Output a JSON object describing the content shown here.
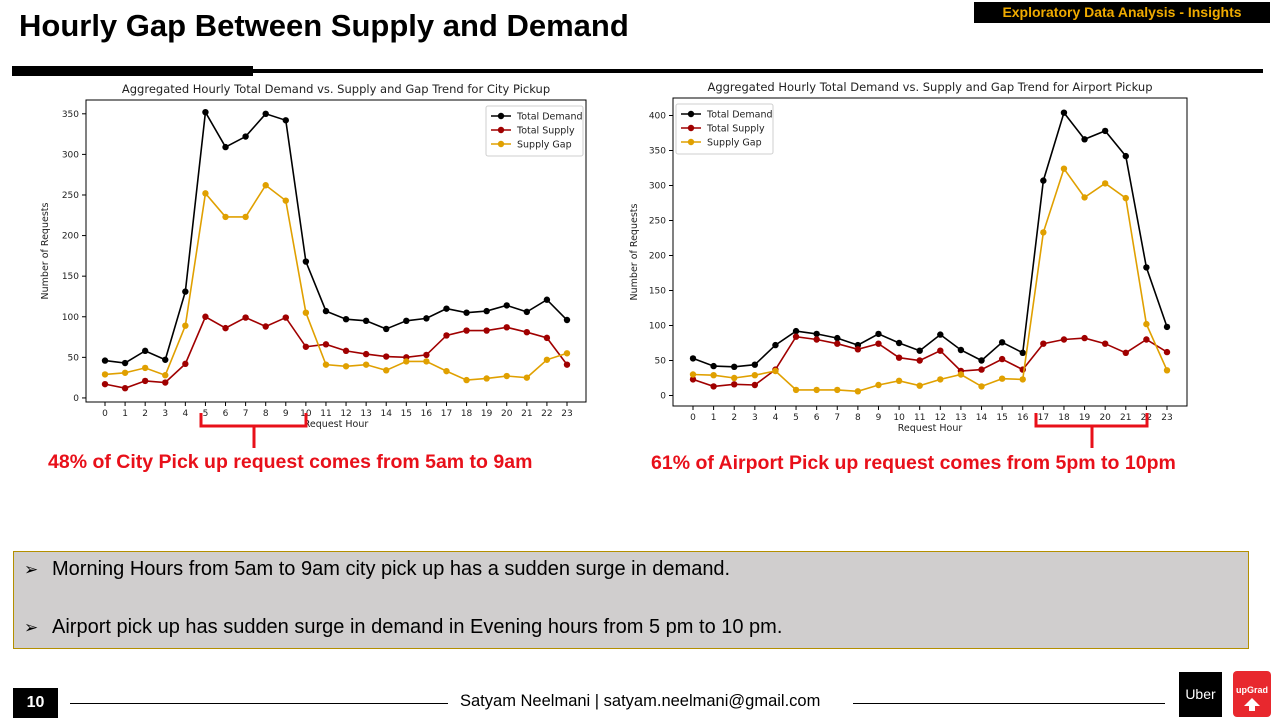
{
  "header": {
    "title": "Hourly Gap Between Supply and Demand",
    "section_badge": "Exploratory Data Analysis - Insights"
  },
  "colors": {
    "accent": "#f0ab00",
    "highlight_red": "#e8101a",
    "demand": "#000000",
    "supply": "#a00000",
    "gap": "#e0a000",
    "summary_bg": "#d0cece"
  },
  "chart_data": [
    {
      "type": "line",
      "title": "Aggregated Hourly Total Demand vs. Supply and Gap Trend for City Pickup",
      "xlabel": "Request Hour",
      "ylabel": "Number of Requests",
      "x": [
        0,
        1,
        2,
        3,
        4,
        5,
        6,
        7,
        8,
        9,
        10,
        11,
        12,
        13,
        14,
        15,
        16,
        17,
        18,
        19,
        20,
        21,
        22,
        23
      ],
      "yticks": [
        0,
        50,
        100,
        150,
        200,
        250,
        300,
        350
      ],
      "ylim": [
        -5,
        367
      ],
      "legend_position": "top-right",
      "series": [
        {
          "name": "Total Demand",
          "color": "#000000",
          "values": [
            46,
            43,
            58,
            47,
            131,
            352,
            309,
            322,
            350,
            342,
            168,
            107,
            97,
            95,
            85,
            95,
            98,
            110,
            105,
            107,
            114,
            106,
            121,
            96
          ]
        },
        {
          "name": "Total Supply",
          "color": "#a00000",
          "values": [
            17,
            12,
            21,
            19,
            42,
            100,
            86,
            99,
            88,
            99,
            63,
            66,
            58,
            54,
            51,
            50,
            53,
            77,
            83,
            83,
            87,
            81,
            74,
            41
          ]
        },
        {
          "name": "Supply Gap",
          "color": "#e0a000",
          "values": [
            29,
            31,
            37,
            28,
            89,
            252,
            223,
            223,
            262,
            243,
            105,
            41,
            39,
            41,
            34,
            45,
            45,
            33,
            22,
            24,
            27,
            25,
            47,
            55
          ]
        }
      ]
    },
    {
      "type": "line",
      "title": "Aggregated Hourly Total Demand vs. Supply and Gap Trend for Airport Pickup",
      "xlabel": "Request Hour",
      "ylabel": "Number of Requests",
      "x": [
        0,
        1,
        2,
        3,
        4,
        5,
        6,
        7,
        8,
        9,
        10,
        11,
        12,
        13,
        14,
        15,
        16,
        17,
        18,
        19,
        20,
        21,
        22,
        23
      ],
      "yticks": [
        0,
        50,
        100,
        150,
        200,
        250,
        300,
        350,
        400
      ],
      "ylim": [
        -15,
        425
      ],
      "legend_position": "top-left",
      "series": [
        {
          "name": "Total Demand",
          "color": "#000000",
          "values": [
            53,
            42,
            41,
            44,
            72,
            92,
            88,
            82,
            72,
            88,
            75,
            64,
            87,
            65,
            50,
            76,
            61,
            307,
            404,
            366,
            378,
            342,
            183,
            98
          ]
        },
        {
          "name": "Total Supply",
          "color": "#a00000",
          "values": [
            23,
            13,
            16,
            15,
            37,
            84,
            80,
            74,
            66,
            74,
            54,
            50,
            64,
            35,
            37,
            52,
            37,
            74,
            80,
            82,
            74,
            61,
            80,
            62
          ]
        },
        {
          "name": "Supply Gap",
          "color": "#e0a000",
          "values": [
            30,
            29,
            25,
            29,
            35,
            8,
            8,
            8,
            6,
            15,
            21,
            14,
            23,
            30,
            13,
            24,
            23,
            233,
            324,
            283,
            303,
            282,
            102,
            36
          ]
        }
      ]
    }
  ],
  "insights": {
    "city": "48% of City Pick up request comes from 5am to 9am",
    "airport": "61% of Airport Pick up request comes from 5pm to 10pm"
  },
  "summary": {
    "bullets": [
      "Morning Hours from 5am to 9am city pick up has a sudden surge in demand.",
      "Airport pick up has sudden surge in demand in Evening hours from 5 pm to 10 pm."
    ]
  },
  "footer": {
    "page_number": "10",
    "author": "Satyam Neelmani | satyam.neelmani@gmail.com"
  },
  "logos": {
    "uber": "Uber",
    "upgrad": "upGrad"
  }
}
